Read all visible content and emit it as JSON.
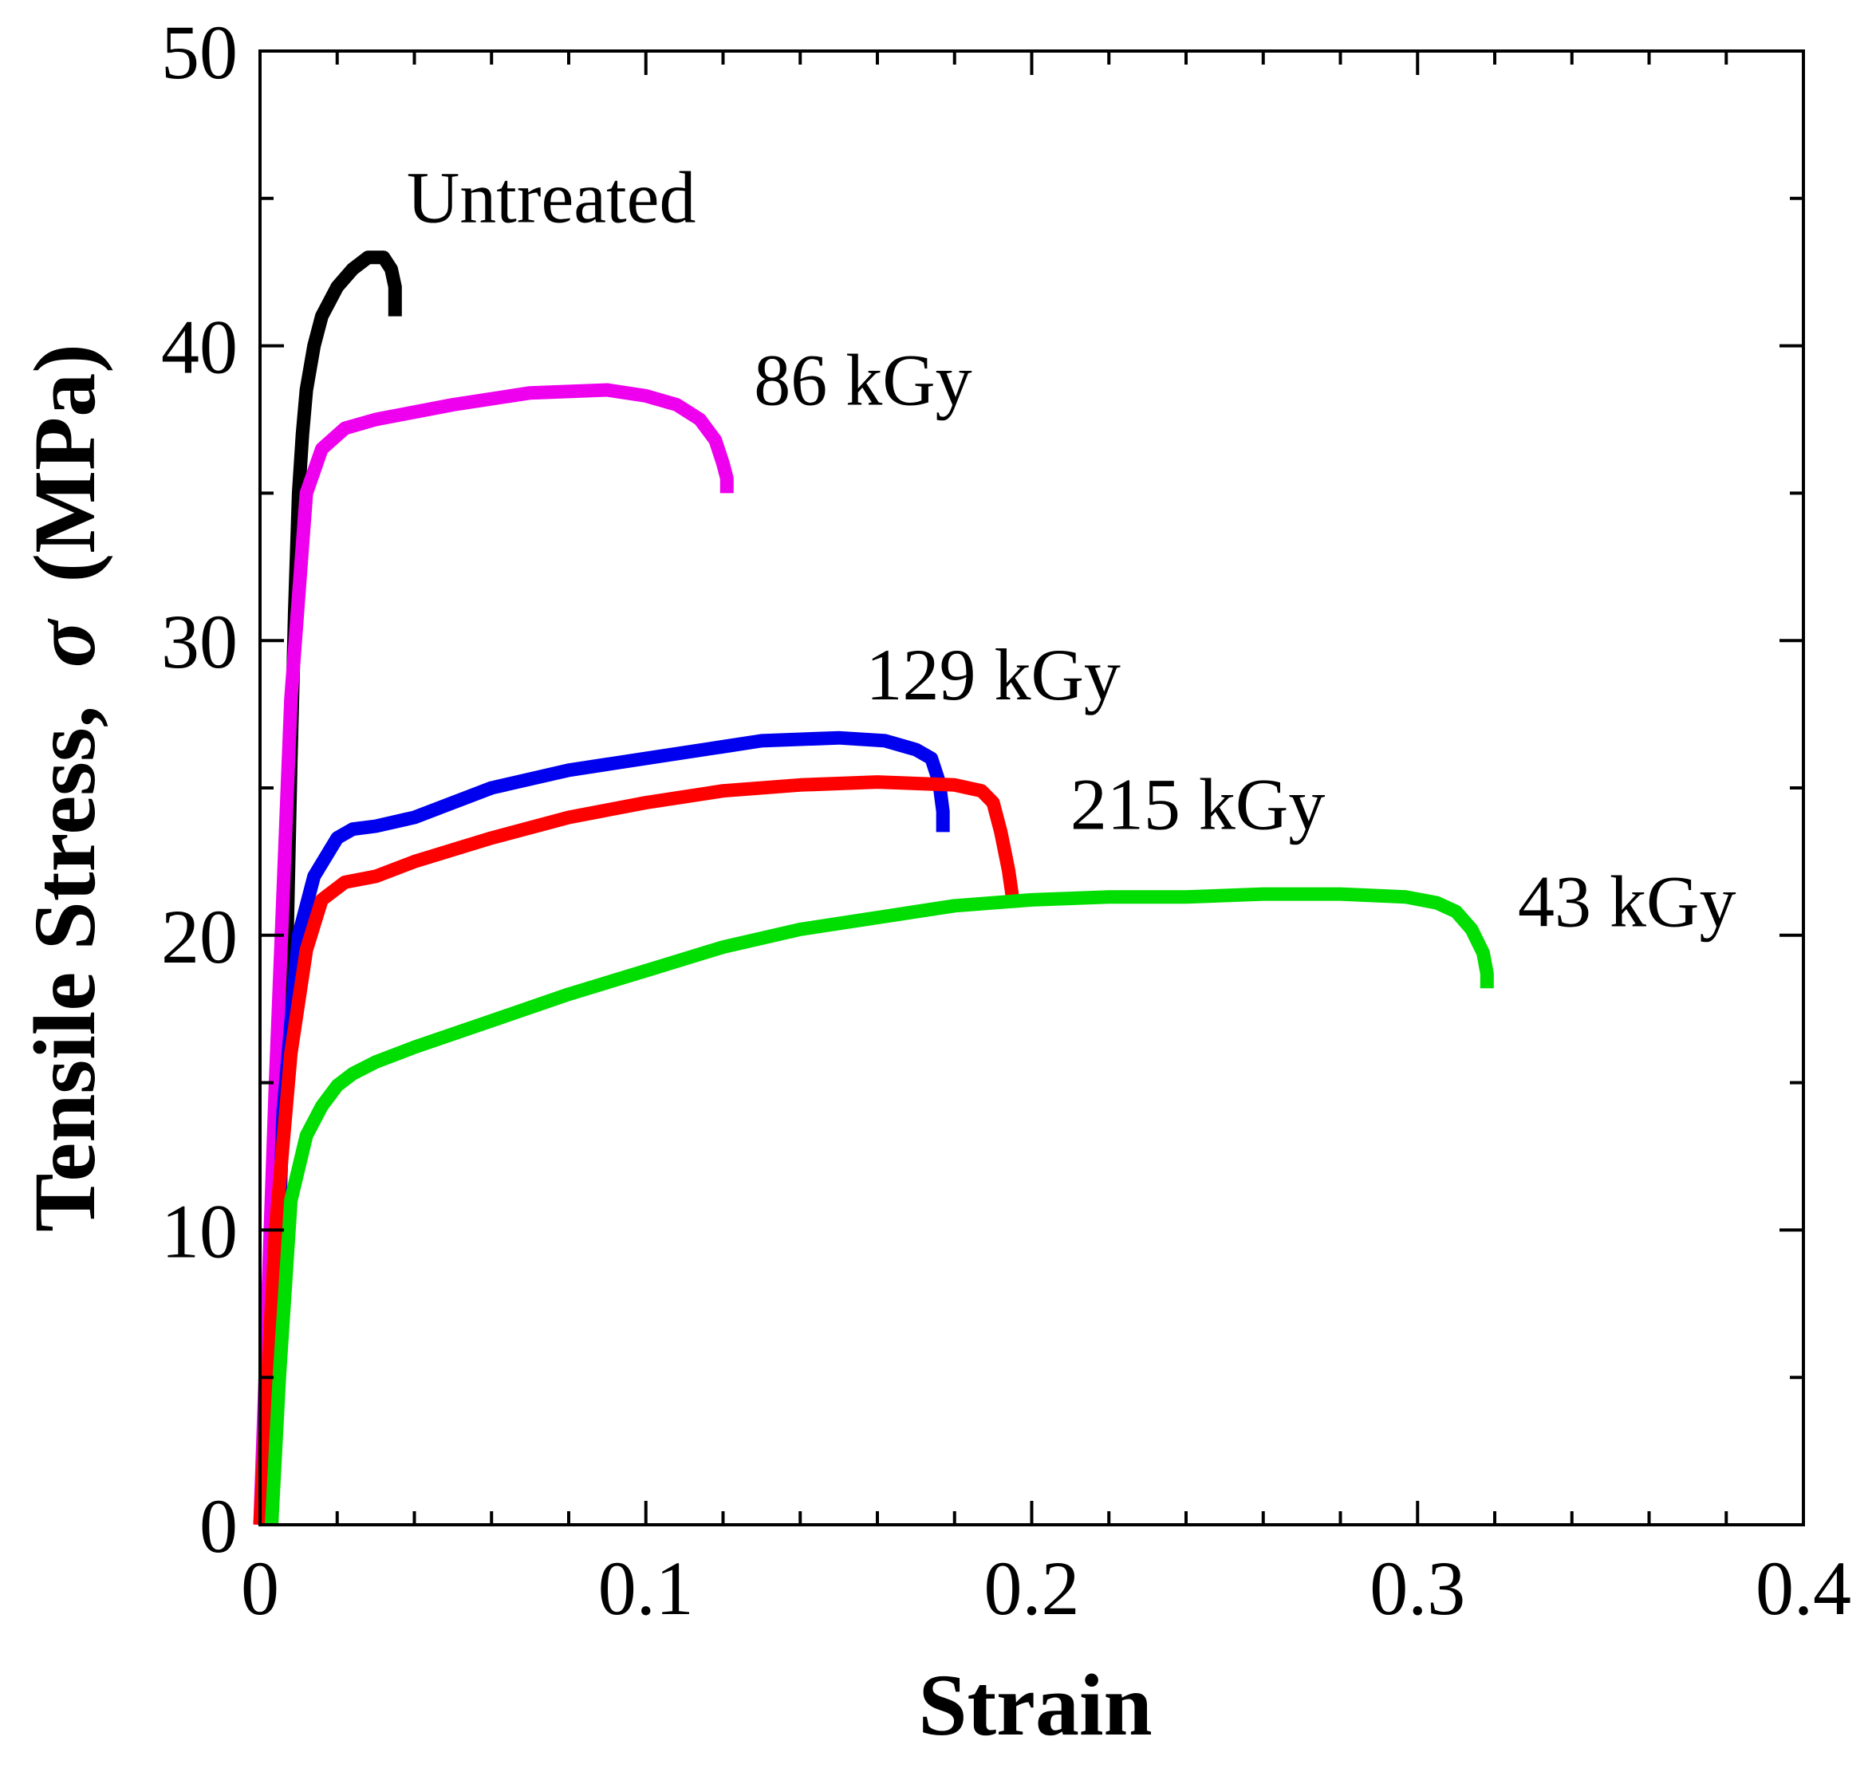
{
  "chart_data": {
    "type": "line",
    "title": "",
    "xlabel": "Strain",
    "ylabel_prefix": "Tensile Stress,",
    "ylabel_symbol": "σ",
    "ylabel_unit": "(MPa)",
    "xlim": [
      0,
      0.4
    ],
    "ylim": [
      0,
      50
    ],
    "x_ticks": [
      0,
      0.1,
      0.2,
      0.3,
      0.4
    ],
    "x_tick_labels": [
      "0",
      "0.1",
      "0.2",
      "0.3",
      "0.4"
    ],
    "y_ticks": [
      0,
      10,
      20,
      30,
      40,
      50
    ],
    "y_tick_labels": [
      "0",
      "10",
      "20",
      "30",
      "40",
      "50"
    ],
    "x_minor_step": 0.02,
    "y_minor_step": 5,
    "grid": false,
    "legend": "inline labels near curve ends",
    "series": [
      {
        "name": "Untreated",
        "color": "#000000",
        "x": [
          0.003,
          0.005,
          0.007,
          0.008,
          0.009,
          0.01,
          0.011,
          0.012,
          0.014,
          0.016,
          0.02,
          0.024,
          0.028,
          0.032,
          0.034,
          0.035,
          0.035
        ],
        "y": [
          0,
          10,
          20,
          26,
          31,
          35,
          37,
          38.5,
          40,
          41,
          42,
          42.6,
          43,
          43,
          42.6,
          42,
          41
        ]
      },
      {
        "name": "86 kGy",
        "color": "#ee00ee",
        "x": [
          0,
          0.004,
          0.008,
          0.012,
          0.016,
          0.022,
          0.03,
          0.05,
          0.07,
          0.09,
          0.1,
          0.108,
          0.114,
          0.118,
          0.12,
          0.121,
          0.121
        ],
        "y": [
          0,
          15,
          28,
          35,
          36.5,
          37.2,
          37.5,
          38,
          38.4,
          38.5,
          38.3,
          38,
          37.5,
          36.8,
          36,
          35.5,
          35
        ]
      },
      {
        "name": "129 kGy",
        "color": "#0000ee",
        "x": [
          0.002,
          0.006,
          0.01,
          0.014,
          0.02,
          0.024,
          0.03,
          0.04,
          0.06,
          0.08,
          0.1,
          0.12,
          0.13,
          0.15,
          0.162,
          0.17,
          0.174,
          0.176,
          0.177,
          0.177
        ],
        "y": [
          0,
          14,
          20,
          22,
          23.3,
          23.6,
          23.7,
          24,
          25,
          25.6,
          26,
          26.4,
          26.6,
          26.7,
          26.6,
          26.3,
          26,
          25.2,
          24.2,
          23.5
        ]
      },
      {
        "name": "215 kGy",
        "color": "#ff0000",
        "x": [
          0,
          0.004,
          0.008,
          0.012,
          0.016,
          0.022,
          0.03,
          0.04,
          0.06,
          0.08,
          0.1,
          0.12,
          0.14,
          0.16,
          0.18,
          0.187,
          0.19,
          0.192,
          0.194,
          0.195,
          0.195
        ],
        "y": [
          0,
          10,
          16,
          19.5,
          21.2,
          21.8,
          22,
          22.5,
          23.3,
          24,
          24.5,
          24.9,
          25.1,
          25.2,
          25.1,
          24.9,
          24.5,
          23.5,
          22.2,
          21.3,
          21
        ]
      },
      {
        "name": "43 kGy",
        "color": "#00dd00",
        "x": [
          0.003,
          0.005,
          0.008,
          0.012,
          0.016,
          0.02,
          0.024,
          0.03,
          0.04,
          0.06,
          0.08,
          0.1,
          0.12,
          0.14,
          0.16,
          0.18,
          0.2,
          0.22,
          0.24,
          0.26,
          0.28,
          0.297,
          0.305,
          0.31,
          0.314,
          0.317,
          0.318,
          0.318
        ],
        "y": [
          0,
          5,
          11,
          13.2,
          14.2,
          14.9,
          15.3,
          15.7,
          16.2,
          17.1,
          18,
          18.8,
          19.6,
          20.2,
          20.6,
          21,
          21.2,
          21.3,
          21.3,
          21.4,
          21.4,
          21.3,
          21.1,
          20.8,
          20.2,
          19.4,
          18.7,
          18.2
        ]
      }
    ],
    "annotations": [
      {
        "text": "Untreated",
        "x": 0.038,
        "y": 44.2
      },
      {
        "text": "86 kGy",
        "x": 0.128,
        "y": 38.0
      },
      {
        "text": "129 kGy",
        "x": 0.157,
        "y": 28.0
      },
      {
        "text": "215 kGy",
        "x": 0.21,
        "y": 23.6
      },
      {
        "text": "43 kGy",
        "x": 0.326,
        "y": 20.3
      }
    ]
  }
}
